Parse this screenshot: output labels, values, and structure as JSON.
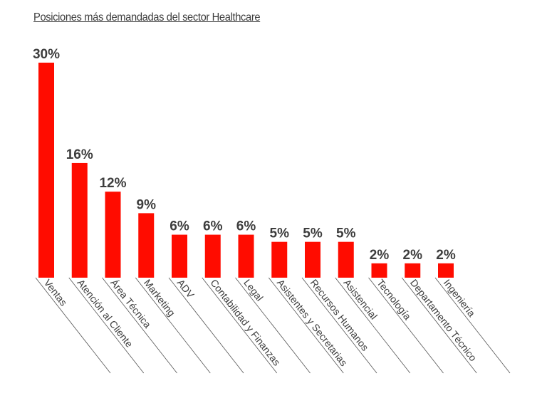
{
  "chart_data": {
    "type": "bar",
    "title": "Posiciones más demandadas del sector Healthcare",
    "xlabel": "",
    "ylabel": "",
    "categories": [
      "Ventas",
      "Atención al Cliente",
      "Área Técnica",
      "Marketing",
      "ADV",
      "Contabilidad y Finanzas",
      "Legal",
      "Asistentes y Secretarias",
      "Recursos Humanos",
      "Asistencial",
      "Tecnología",
      "Departamento Técnico",
      "Ingeniería"
    ],
    "values": [
      30,
      16,
      12,
      9,
      6,
      6,
      6,
      5,
      5,
      5,
      2,
      2,
      2
    ],
    "data_labels": [
      "30%",
      "16%",
      "12%",
      "9%",
      "6%",
      "6%",
      "6%",
      "5%",
      "5%",
      "5%",
      "2%",
      "2%",
      "2%"
    ],
    "ylim": [
      0,
      30
    ],
    "grid": false,
    "legend": "none",
    "bar_color": "#ff0c00",
    "text_color": "#3d3d3d"
  }
}
